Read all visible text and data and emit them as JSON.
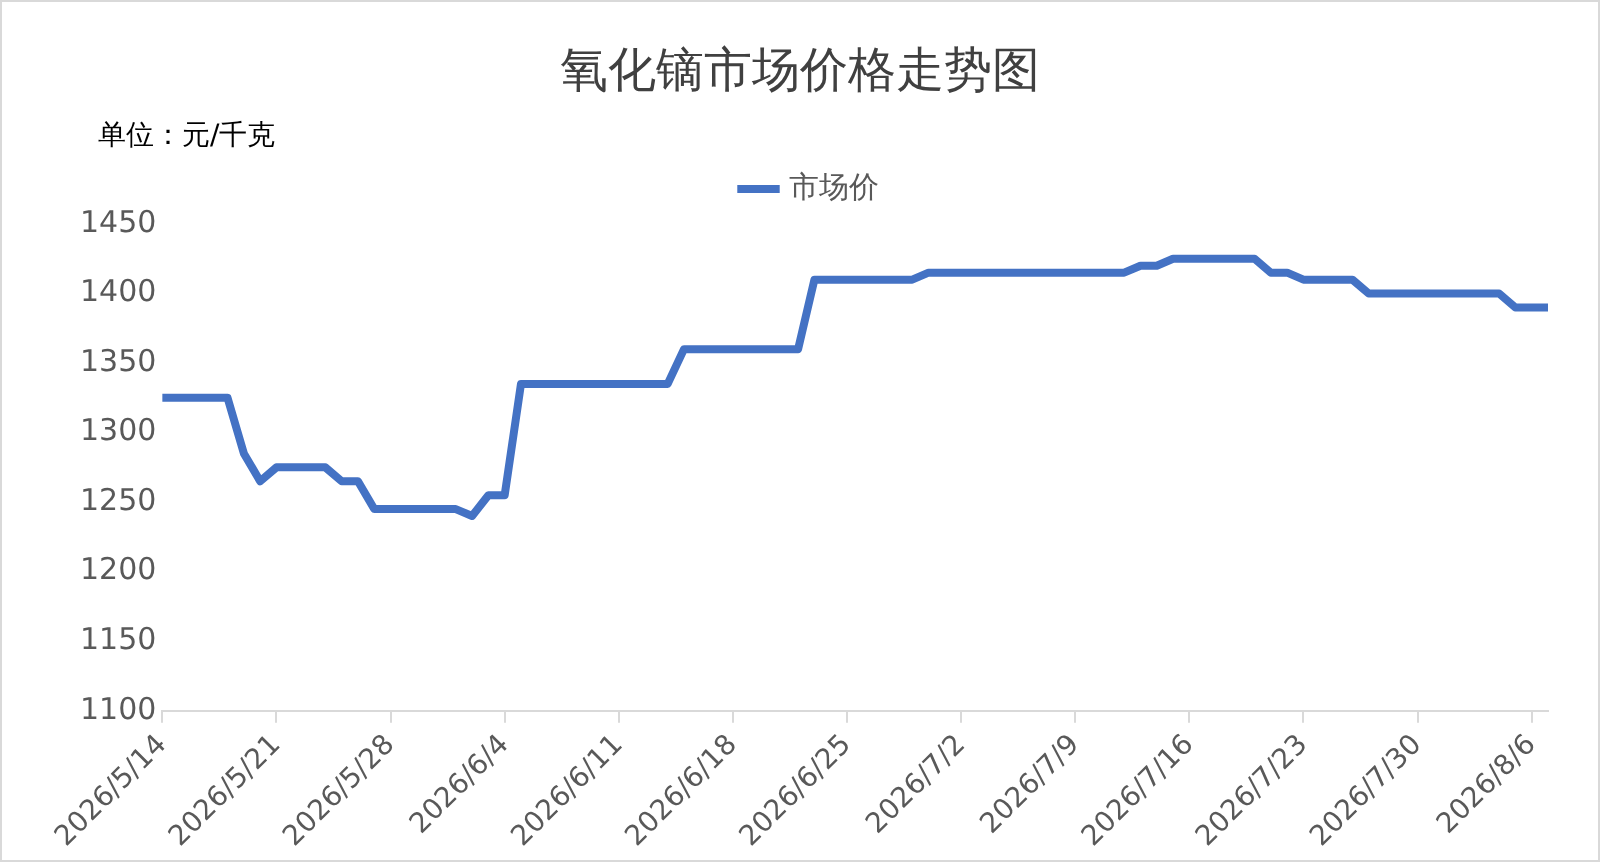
{
  "chart_data": {
    "type": "line",
    "title": "氧化镝市场价格走势图",
    "ylabel": "单位：元/千克",
    "x": [
      "2026-05-14",
      "2026-05-18",
      "2026-05-19",
      "2026-05-20",
      "2026-05-21",
      "2026-05-24",
      "2026-05-25",
      "2026-05-26",
      "2026-05-27",
      "2026-06-01",
      "2026-06-02",
      "2026-06-03",
      "2026-06-04",
      "2026-06-05",
      "2026-06-14",
      "2026-06-15",
      "2026-06-22",
      "2026-06-23",
      "2026-06-29",
      "2026-06-30",
      "2026-07-12",
      "2026-07-13",
      "2026-07-14",
      "2026-07-15",
      "2026-07-20",
      "2026-07-21",
      "2026-07-22",
      "2026-07-23",
      "2026-07-26",
      "2026-07-27",
      "2026-08-04",
      "2026-08-05",
      "2026-08-07"
    ],
    "series": [
      {
        "name": "市场价",
        "color": "#4472c4",
        "values": [
          1325,
          1325,
          1285,
          1265,
          1275,
          1275,
          1265,
          1265,
          1245,
          1245,
          1240,
          1255,
          1255,
          1335,
          1335,
          1360,
          1360,
          1410,
          1410,
          1415,
          1415,
          1420,
          1420,
          1425,
          1425,
          1415,
          1415,
          1410,
          1410,
          1400,
          1400,
          1390,
          1390
        ]
      }
    ],
    "xlim": [
      "2026-05-14",
      "2026-08-07"
    ],
    "xticks": [
      {
        "value": "2026-05-14",
        "label": "2026/5/14"
      },
      {
        "value": "2026-05-21",
        "label": "2026/5/21"
      },
      {
        "value": "2026-05-28",
        "label": "2026/5/28"
      },
      {
        "value": "2026-06-04",
        "label": "2026/6/4"
      },
      {
        "value": "2026-06-11",
        "label": "2026/6/11"
      },
      {
        "value": "2026-06-18",
        "label": "2026/6/18"
      },
      {
        "value": "2026-06-25",
        "label": "2026/6/25"
      },
      {
        "value": "2026-07-02",
        "label": "2026/7/2"
      },
      {
        "value": "2026-07-09",
        "label": "2026/7/9"
      },
      {
        "value": "2026-07-16",
        "label": "2026/7/16"
      },
      {
        "value": "2026-07-23",
        "label": "2026/7/23"
      },
      {
        "value": "2026-07-30",
        "label": "2026/7/30"
      },
      {
        "value": "2026-08-06",
        "label": "2026/8/6"
      }
    ],
    "ylim": [
      1100,
      1450
    ],
    "yticks": [
      1100,
      1150,
      1200,
      1250,
      1300,
      1350,
      1400,
      1450
    ],
    "legend": "top",
    "grid": false,
    "marker": "none",
    "line_style": "solid"
  }
}
